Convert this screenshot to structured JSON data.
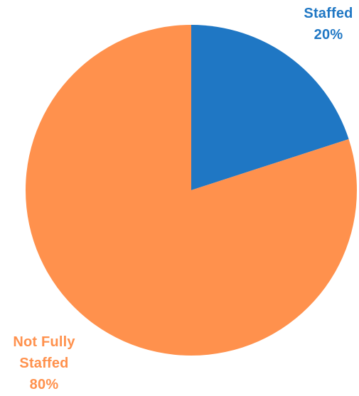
{
  "chart_data": {
    "type": "pie",
    "title": "",
    "categories": [
      "Staffed",
      "Not Fully Staffed"
    ],
    "values": [
      20,
      80
    ],
    "colors": [
      "#1f77c4",
      "#ff914d"
    ],
    "data_labels": [
      {
        "lines": [
          "Staffed",
          "20%"
        ],
        "color": "#1f77c4"
      },
      {
        "lines": [
          "Not Fully",
          "Staffed",
          "80%"
        ],
        "color": "#ff914d"
      }
    ],
    "start_angle_deg": 0,
    "direction": "clockwise",
    "legend": "none"
  }
}
